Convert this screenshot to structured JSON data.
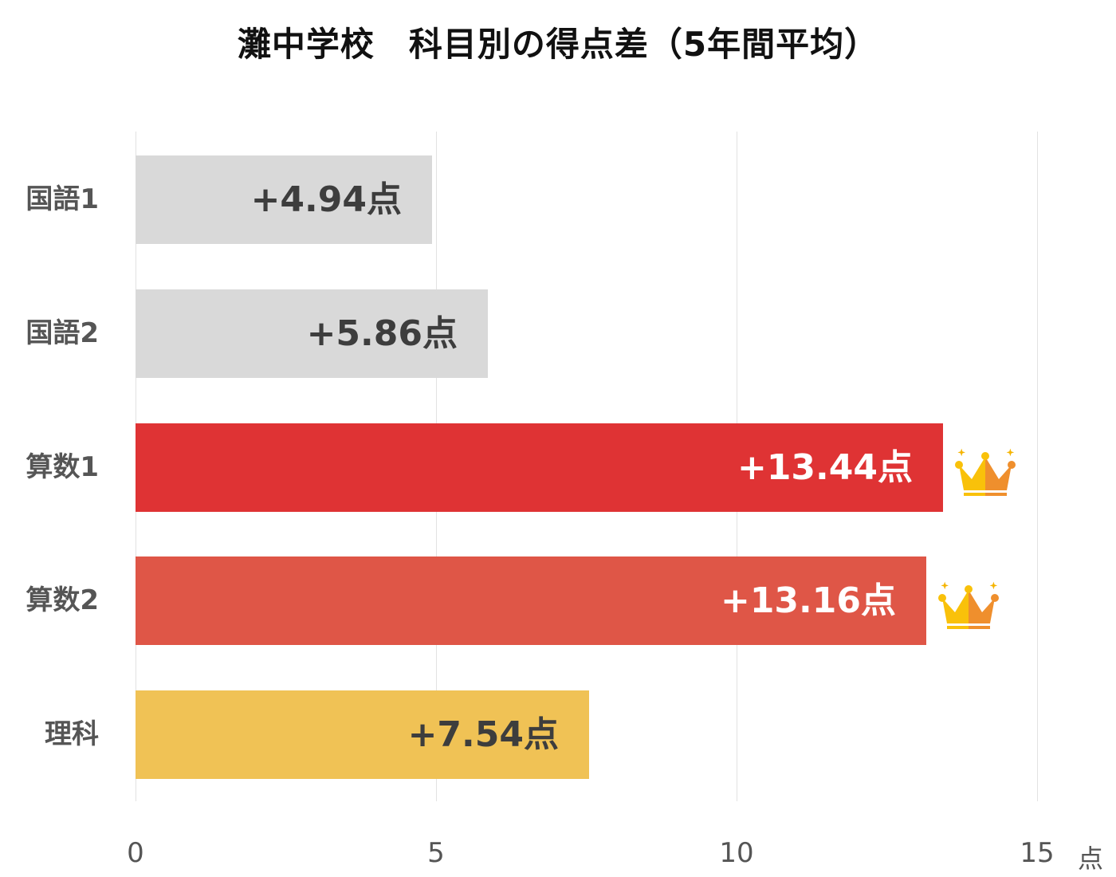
{
  "chart_data": {
    "type": "bar",
    "orientation": "horizontal",
    "title": "灘中学校　科目別の得点差（5年間平均）",
    "xlabel": "点",
    "ylabel": "",
    "categories": [
      "国語1",
      "国語2",
      "算数1",
      "算数2",
      "理科"
    ],
    "values": [
      4.94,
      5.86,
      13.44,
      13.16,
      7.54
    ],
    "data_labels": [
      "+4.94点",
      "+5.86点",
      "+13.44点",
      "+13.16点",
      "+7.54点"
    ],
    "bar_colors": [
      "#d9d9d9",
      "#d9d9d9",
      "#df3334",
      "#df5647",
      "#f0c255"
    ],
    "label_colors": [
      "#3d3d3d",
      "#3d3d3d",
      "#ffffff",
      "#ffffff",
      "#3d3d3d"
    ],
    "highlighted": [
      "算数1",
      "算数2"
    ],
    "highlight_icon": "crown-icon",
    "xlim": [
      0,
      15
    ],
    "xticks": [
      0,
      5,
      10,
      15
    ],
    "grid": true,
    "legend": "none"
  },
  "title": "灘中学校　科目別の得点差（5年間平均）",
  "axis": {
    "ticks": [
      "0",
      "5",
      "10",
      "15"
    ],
    "unit": "点"
  }
}
